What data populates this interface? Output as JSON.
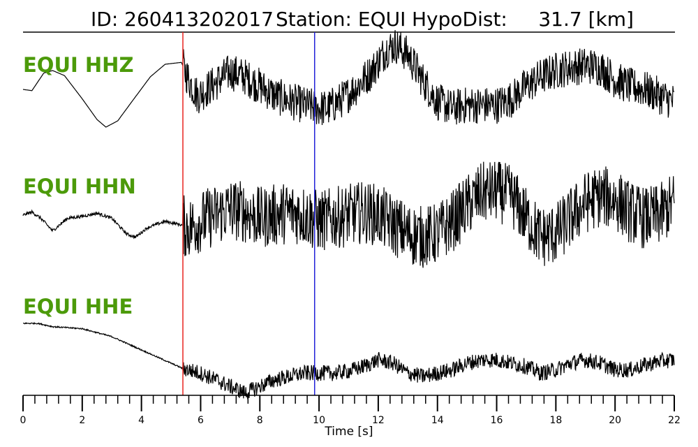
{
  "title": {
    "id_text": "ID: 260413202017",
    "station_text": "Station: EQUI",
    "dist_text": "HypoDist:     31.7 [km]"
  },
  "colors": {
    "label": "#4c9a0a",
    "trace": "#000000",
    "p_pick": "#e8231f",
    "s_pick": "#2020d8"
  },
  "chart_data": {
    "type": "line",
    "xlabel": "Time [s]",
    "xlim": [
      0,
      22
    ],
    "x_major_ticks": [
      0,
      2,
      4,
      6,
      8,
      10,
      12,
      14,
      16,
      18,
      20,
      22
    ],
    "x_minor_step": 0.4,
    "grid": false,
    "picks": [
      {
        "phase": "P",
        "time": 5.4
      },
      {
        "phase": "S",
        "time": 9.85
      }
    ],
    "series": [
      {
        "name": "EQUI HHZ",
        "noise_before": 0.0,
        "noise_after": 3.0,
        "points": [
          [
            0,
            0
          ],
          [
            0.3,
            -0.2
          ],
          [
            0.7,
            2.6
          ],
          [
            1.0,
            3.0
          ],
          [
            1.4,
            2.2
          ],
          [
            2.0,
            -1.5
          ],
          [
            2.5,
            -4.8
          ],
          [
            2.8,
            -6.0
          ],
          [
            3.2,
            -5.0
          ],
          [
            3.7,
            -1.8
          ],
          [
            4.3,
            2.0
          ],
          [
            4.8,
            4.0
          ],
          [
            5.35,
            4.3
          ],
          [
            5.6,
            1.5
          ],
          [
            5.9,
            -1.0
          ],
          [
            6.5,
            1.0
          ],
          [
            7.0,
            2.8
          ],
          [
            7.5,
            2.0
          ],
          [
            8.0,
            0.5
          ],
          [
            8.5,
            -1.0
          ],
          [
            9.0,
            -1.8
          ],
          [
            9.5,
            -2.5
          ],
          [
            10.0,
            -3.0
          ],
          [
            10.3,
            -3.0
          ],
          [
            10.8,
            -1.5
          ],
          [
            11.3,
            0.5
          ],
          [
            11.8,
            3.0
          ],
          [
            12.3,
            6.5
          ],
          [
            12.6,
            7.0
          ],
          [
            13.0,
            5.5
          ],
          [
            13.5,
            1.5
          ],
          [
            14.0,
            -2.0
          ],
          [
            14.5,
            -3.0
          ],
          [
            15.0,
            -2.5
          ],
          [
            15.5,
            -2.5
          ],
          [
            16.0,
            -2.5
          ],
          [
            16.5,
            -1.5
          ],
          [
            17.0,
            0.5
          ],
          [
            17.5,
            2.0
          ],
          [
            18.0,
            3.0
          ],
          [
            18.5,
            3.5
          ],
          [
            19.0,
            3.8
          ],
          [
            19.5,
            3.5
          ],
          [
            20.0,
            1.5
          ],
          [
            20.5,
            0.5
          ],
          [
            21.0,
            0
          ],
          [
            21.5,
            -1.0
          ],
          [
            22.0,
            -2.0
          ]
        ]
      },
      {
        "name": "EQUI HHN",
        "noise_before": 0.25,
        "noise_after": 5.0,
        "points": [
          [
            0,
            0
          ],
          [
            0.3,
            0.5
          ],
          [
            0.6,
            -0.5
          ],
          [
            1.0,
            -2.5
          ],
          [
            1.5,
            -0.5
          ],
          [
            2.0,
            -0.2
          ],
          [
            2.5,
            0.3
          ],
          [
            3.0,
            -0.5
          ],
          [
            3.5,
            -3.0
          ],
          [
            3.8,
            -3.5
          ],
          [
            4.2,
            -2.0
          ],
          [
            4.8,
            -1.0
          ],
          [
            5.3,
            -1.5
          ],
          [
            5.6,
            -2.0
          ],
          [
            6.0,
            -1.0
          ],
          [
            6.5,
            0
          ],
          [
            7.0,
            1.0
          ],
          [
            7.5,
            0.5
          ],
          [
            8.0,
            -0.5
          ],
          [
            8.5,
            0
          ],
          [
            9.0,
            0.5
          ],
          [
            9.5,
            0
          ],
          [
            10.0,
            -1.0
          ],
          [
            10.5,
            -0.5
          ],
          [
            11.0,
            0
          ],
          [
            11.5,
            0.5
          ],
          [
            12.0,
            0
          ],
          [
            12.5,
            -1.5
          ],
          [
            13.0,
            -3.0
          ],
          [
            13.5,
            -3.5
          ],
          [
            14.0,
            -3.0
          ],
          [
            14.5,
            -1.0
          ],
          [
            15.0,
            1.5
          ],
          [
            15.5,
            3.5
          ],
          [
            16.0,
            3.8
          ],
          [
            16.5,
            3.0
          ],
          [
            17.0,
            -0.5
          ],
          [
            17.5,
            -3.5
          ],
          [
            18.0,
            -3.0
          ],
          [
            18.5,
            -0.5
          ],
          [
            19.0,
            2.0
          ],
          [
            19.5,
            3.0
          ],
          [
            20.0,
            2.5
          ],
          [
            20.5,
            0.5
          ],
          [
            21.0,
            -0.5
          ],
          [
            21.5,
            0
          ],
          [
            22.0,
            2.0
          ]
        ]
      },
      {
        "name": "EQUI HHE",
        "noise_before": 0.1,
        "noise_after": 1.2,
        "points": [
          [
            0,
            6.0
          ],
          [
            0.5,
            6.0
          ],
          [
            1.0,
            5.5
          ],
          [
            2.0,
            5.2
          ],
          [
            3.0,
            4.0
          ],
          [
            4.0,
            2.0
          ],
          [
            5.0,
            0
          ],
          [
            5.4,
            -0.8
          ],
          [
            6.0,
            -1.5
          ],
          [
            6.5,
            -2.5
          ],
          [
            7.0,
            -3.5
          ],
          [
            7.5,
            -4.5
          ],
          [
            8.0,
            -3.5
          ],
          [
            8.5,
            -2.5
          ],
          [
            9.0,
            -2.0
          ],
          [
            9.5,
            -1.5
          ],
          [
            10.0,
            -1.5
          ],
          [
            10.5,
            -1.5
          ],
          [
            11.0,
            -1.2
          ],
          [
            11.5,
            -0.5
          ],
          [
            12.0,
            0.5
          ],
          [
            12.5,
            0
          ],
          [
            13.0,
            -1.5
          ],
          [
            13.5,
            -2.0
          ],
          [
            14.0,
            -1.5
          ],
          [
            14.5,
            -1.0
          ],
          [
            15.0,
            0
          ],
          [
            15.5,
            0.5
          ],
          [
            16.0,
            0.5
          ],
          [
            16.5,
            0
          ],
          [
            17.0,
            -0.5
          ],
          [
            17.5,
            -1.5
          ],
          [
            18.0,
            -1.0
          ],
          [
            18.5,
            0
          ],
          [
            19.0,
            0.5
          ],
          [
            19.5,
            0
          ],
          [
            20.0,
            -1.0
          ],
          [
            20.5,
            -1.0
          ],
          [
            21.0,
            -0.3
          ],
          [
            21.5,
            0.3
          ],
          [
            22.0,
            0.5
          ]
        ]
      }
    ]
  }
}
